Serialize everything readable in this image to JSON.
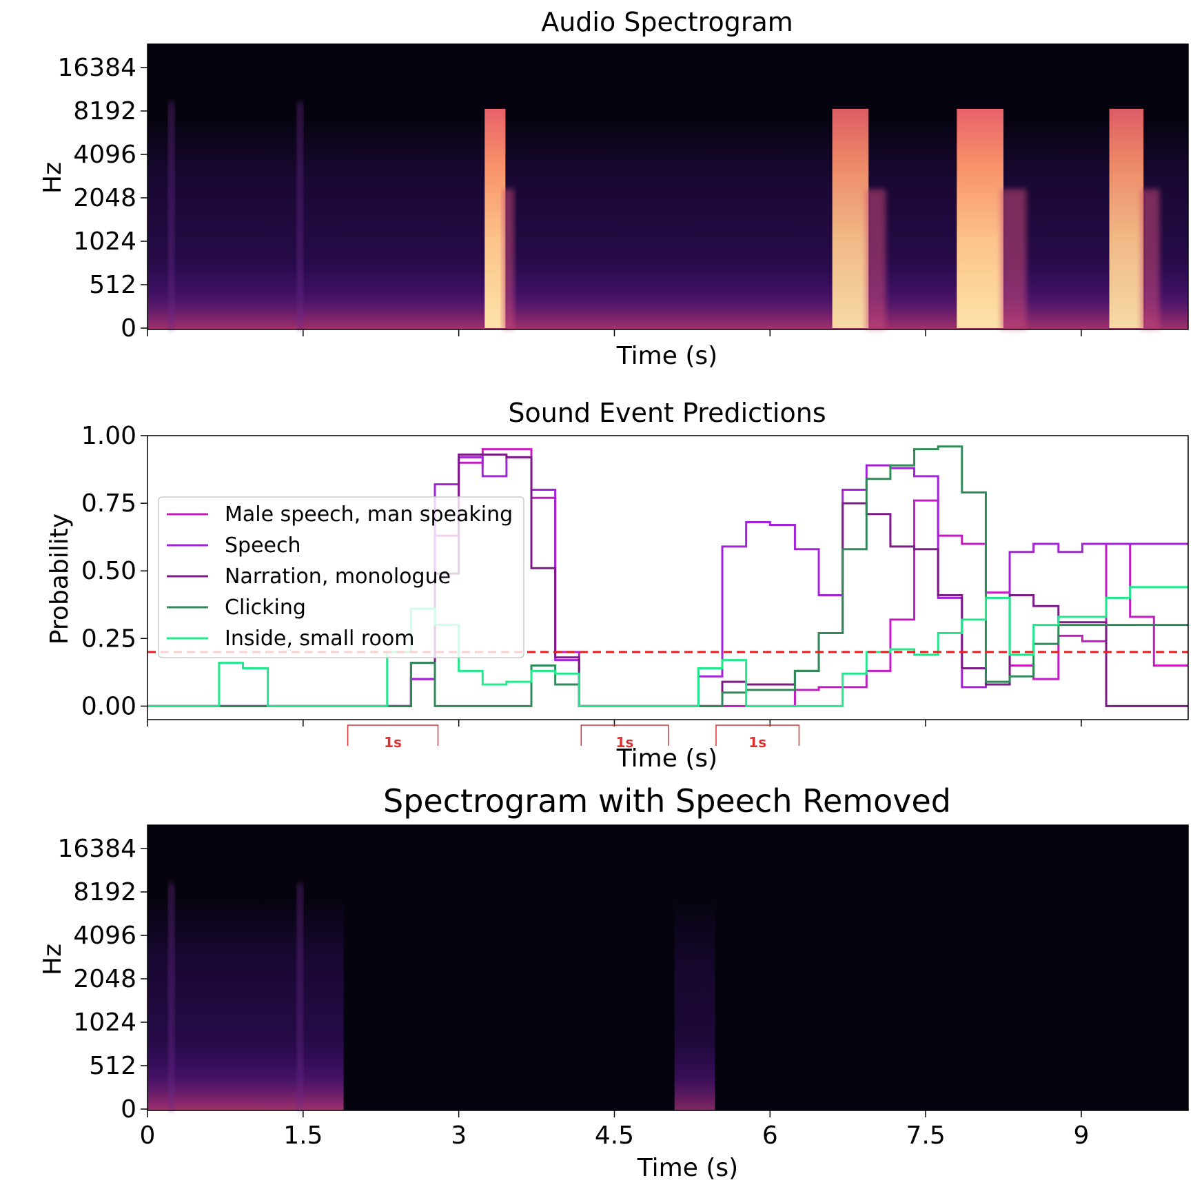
{
  "chart_data": [
    {
      "type": "heatmap",
      "title": "Audio Spectrogram",
      "xlabel": "Time (s)",
      "ylabel": "Hz",
      "xlim": [
        0,
        10.03
      ],
      "yticks": [
        "0",
        "512",
        "1024",
        "2048",
        "4096",
        "8192",
        "16384"
      ],
      "xticks": [
        0,
        1.5,
        3,
        4.5,
        6,
        7.5,
        9
      ],
      "xtick_labels_visible": false,
      "colormap": "magma",
      "bursts": [
        {
          "t0": 3.25,
          "t1": 3.45,
          "top_hz": 8192,
          "intensity": 1.0
        },
        {
          "t0": 6.6,
          "t1": 6.95,
          "top_hz": 8192,
          "intensity": 0.95
        },
        {
          "t0": 7.8,
          "t1": 8.25,
          "top_hz": 8192,
          "intensity": 1.0
        },
        {
          "t0": 9.27,
          "t1": 9.6,
          "top_hz": 8192,
          "intensity": 0.95
        }
      ]
    },
    {
      "type": "line",
      "step": true,
      "title": "Sound Event Predictions",
      "xlabel": "Time (s)",
      "ylabel": "Probability",
      "xlim": [
        0,
        10.03
      ],
      "ylim": [
        -0.05,
        1.0
      ],
      "xticks": [
        0,
        1.5,
        3,
        4.5,
        6,
        7.5,
        9
      ],
      "xtick_labels_visible": false,
      "yticks": [
        "0.00",
        "0.25",
        "0.50",
        "0.75",
        "1.00"
      ],
      "legend_position": "center-left",
      "threshold": {
        "value": 0.2,
        "color": "#ee1c1c",
        "style": "dashed"
      },
      "scale_markers": [
        {
          "t0": 1.93,
          "t1": 2.8,
          "label": "1s"
        },
        {
          "t0": 4.18,
          "t1": 5.02,
          "label": "1s"
        },
        {
          "t0": 5.48,
          "t1": 6.28,
          "label": "1s"
        }
      ],
      "x": [
        0,
        0.23,
        0.46,
        0.69,
        0.92,
        1.16,
        1.39,
        1.62,
        1.85,
        2.08,
        2.31,
        2.54,
        2.77,
        3.0,
        3.23,
        3.46,
        3.7,
        3.93,
        4.16,
        4.39,
        4.62,
        4.85,
        5.08,
        5.31,
        5.54,
        5.77,
        6.0,
        6.24,
        6.47,
        6.7,
        6.93,
        7.16,
        7.39,
        7.62,
        7.85,
        8.08,
        8.31,
        8.54,
        8.78,
        9.01,
        9.24,
        9.47,
        9.7,
        9.93
      ],
      "series": [
        {
          "name": "Male speech, man speaking",
          "color": "#c21bc2",
          "values": [
            0,
            0,
            0,
            0,
            0,
            0,
            0,
            0,
            0,
            0,
            0,
            0.1,
            0.63,
            0.9,
            0.95,
            0.95,
            0.77,
            0.2,
            0,
            0,
            0,
            0,
            0,
            0,
            0,
            0,
            0,
            0.06,
            0.07,
            0.07,
            0.13,
            0.32,
            0.76,
            0.63,
            0.6,
            0.42,
            0.15,
            0.1,
            0.26,
            0.24,
            0.6,
            0.33,
            0.15,
            0.15
          ]
        },
        {
          "name": "Speech",
          "color": "#a321d9",
          "values": [
            0,
            0,
            0,
            0,
            0,
            0,
            0,
            0,
            0,
            0,
            0,
            0.1,
            0.82,
            0.92,
            0.85,
            0.92,
            0.8,
            0.17,
            0,
            0,
            0,
            0,
            0,
            0.11,
            0.59,
            0.68,
            0.67,
            0.58,
            0.41,
            0.8,
            0.89,
            0.88,
            0.85,
            0.4,
            0.07,
            0.08,
            0.57,
            0.6,
            0.57,
            0.6,
            0.6,
            0.6,
            0.6,
            0.6
          ]
        },
        {
          "name": "Narration, monologue",
          "color": "#7c1a86",
          "values": [
            0,
            0,
            0,
            0,
            0,
            0,
            0,
            0,
            0,
            0,
            0,
            0.16,
            0.49,
            0.93,
            0.93,
            0.92,
            0.51,
            0.18,
            0,
            0,
            0,
            0,
            0,
            0,
            0.09,
            0.08,
            0.08,
            0.13,
            0.27,
            0.75,
            0.71,
            0.59,
            0.58,
            0.41,
            0.14,
            0.08,
            0.41,
            0.37,
            0.31,
            0.31,
            0,
            0,
            0,
            0
          ]
        },
        {
          "name": "Clicking",
          "color": "#2e8b57",
          "values": [
            0,
            0,
            0,
            0,
            0,
            0,
            0,
            0,
            0,
            0,
            0,
            0.16,
            0,
            0,
            0,
            0,
            0.15,
            0.08,
            0,
            0,
            0,
            0,
            0,
            0,
            0.05,
            0.06,
            0.06,
            0.13,
            0.27,
            0.58,
            0.84,
            0.89,
            0.95,
            0.96,
            0.79,
            0.09,
            0.11,
            0.23,
            0.3,
            0.3,
            0.3,
            0.3,
            0.3,
            0.3
          ]
        },
        {
          "name": "Inside, small room",
          "color": "#21e88a",
          "values": [
            0,
            0,
            0,
            0.16,
            0.14,
            0,
            0,
            0,
            0,
            0,
            0.2,
            0.36,
            0.3,
            0.13,
            0.08,
            0.09,
            0.13,
            0.12,
            0,
            0,
            0,
            0,
            0,
            0.14,
            0.17,
            0,
            0,
            0,
            0,
            0.12,
            0.2,
            0.21,
            0.19,
            0.27,
            0.32,
            0.4,
            0.19,
            0.3,
            0.33,
            0.33,
            0.4,
            0.44,
            0.44,
            0.44
          ]
        }
      ]
    },
    {
      "type": "heatmap",
      "title": "Spectrogram with Speech Removed",
      "xlabel": "Time (s)",
      "ylabel": "Hz",
      "xlim": [
        0,
        10.03
      ],
      "yticks": [
        "0",
        "512",
        "1024",
        "2048",
        "4096",
        "8192",
        "16384"
      ],
      "xticks": [
        0,
        1.5,
        3,
        4.5,
        6,
        7.5,
        9
      ],
      "xtick_labels": [
        "0",
        "1.5",
        "3",
        "4.5",
        "6",
        "7.5",
        "9"
      ],
      "colormap": "magma",
      "kept_segments": [
        {
          "t0": 0,
          "t1": 1.89
        },
        {
          "t0": 5.08,
          "t1": 5.47
        }
      ]
    }
  ]
}
